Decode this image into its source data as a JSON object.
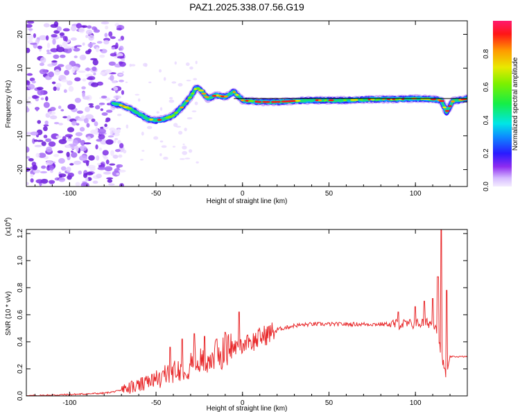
{
  "title": "PAZ1.2025.338.07.56.G19",
  "chart_data": [
    {
      "type": "heatmap",
      "name": "spectrogram",
      "xlabel": "Height of straight line (km)",
      "ylabel": "Frequency (Hz)",
      "xlim": [
        -125,
        130
      ],
      "ylim": [
        -25,
        24
      ],
      "xticks": [
        -100,
        -50,
        0,
        50,
        100
      ],
      "yticks": [
        -20,
        -10,
        0,
        10,
        20
      ],
      "ridge": {
        "x": [
          -75,
          -70,
          -65,
          -60,
          -55,
          -50,
          -45,
          -40,
          -35,
          -30,
          -27,
          -25,
          -20,
          -15,
          -10,
          -5,
          0,
          10,
          20,
          30,
          40,
          50,
          60,
          70,
          80,
          90,
          100,
          110,
          115,
          118,
          122,
          125,
          130
        ],
        "freq": [
          -0.5,
          -1,
          -2,
          -3.5,
          -5,
          -5.5,
          -5,
          -4,
          -1.5,
          1.5,
          4,
          4,
          1,
          2,
          1.5,
          3,
          0.5,
          0,
          0,
          0.3,
          0.5,
          0.5,
          0.5,
          0.7,
          0.8,
          0.8,
          1,
          0.8,
          0.5,
          -3,
          0.5,
          0.5,
          1
        ]
      },
      "noise_region_km": [
        -125,
        -75
      ],
      "reference_line": {
        "x": [
          -5,
          130
        ],
        "freq": [
          1,
          1
        ]
      }
    },
    {
      "type": "colorbar",
      "label": "Normalized spectral amplitude",
      "ticks": [
        "0.0",
        "0.2",
        "0.4",
        "0.6",
        "0.8"
      ],
      "range": [
        0,
        1
      ]
    },
    {
      "type": "line",
      "name": "snr",
      "xlabel": "Height of straight line (km)",
      "ylabel": "SNR (10 * v/v)",
      "scale_label": "(x10^4)",
      "scale_base": "(x10",
      "scale_exp": "4",
      "scale_close": ")",
      "xlim": [
        -125,
        130
      ],
      "ylim": [
        0,
        1.23
      ],
      "xticks": [
        -100,
        -50,
        0,
        50,
        100
      ],
      "yticks": [
        "0.0",
        "0.2",
        "0.4",
        "0.6",
        "0.8",
        "1.0",
        "1.2"
      ],
      "color": "#e8282a",
      "envelope": {
        "x": [
          -125,
          -100,
          -80,
          -70,
          -60,
          -50,
          -40,
          -30,
          -20,
          -10,
          -5,
          0,
          10,
          20,
          30,
          40,
          50,
          60,
          70,
          80,
          90,
          100,
          105,
          110,
          112,
          115,
          117,
          118,
          120,
          125,
          130
        ],
        "base": [
          0.0,
          0.01,
          0.02,
          0.04,
          0.06,
          0.1,
          0.16,
          0.2,
          0.24,
          0.3,
          0.34,
          0.36,
          0.43,
          0.49,
          0.52,
          0.53,
          0.53,
          0.53,
          0.53,
          0.53,
          0.53,
          0.53,
          0.54,
          0.54,
          0.52,
          0.3,
          0.18,
          0.15,
          0.29,
          0.29,
          0.29
        ]
      },
      "spikes": [
        {
          "x": -42,
          "y": 0.36
        },
        {
          "x": -35,
          "y": 0.42
        },
        {
          "x": -28,
          "y": 0.46
        },
        {
          "x": -22,
          "y": 0.44
        },
        {
          "x": -15,
          "y": 0.42
        },
        {
          "x": -10,
          "y": 0.47
        },
        {
          "x": -2,
          "y": 0.62
        },
        {
          "x": 3,
          "y": 0.45
        },
        {
          "x": 90,
          "y": 0.62
        },
        {
          "x": 100,
          "y": 0.66
        },
        {
          "x": 105,
          "y": 0.7
        },
        {
          "x": 110,
          "y": 0.72
        },
        {
          "x": 113,
          "y": 0.88
        },
        {
          "x": 115,
          "y": 1.23
        },
        {
          "x": 118,
          "y": 0.78
        }
      ]
    }
  ]
}
